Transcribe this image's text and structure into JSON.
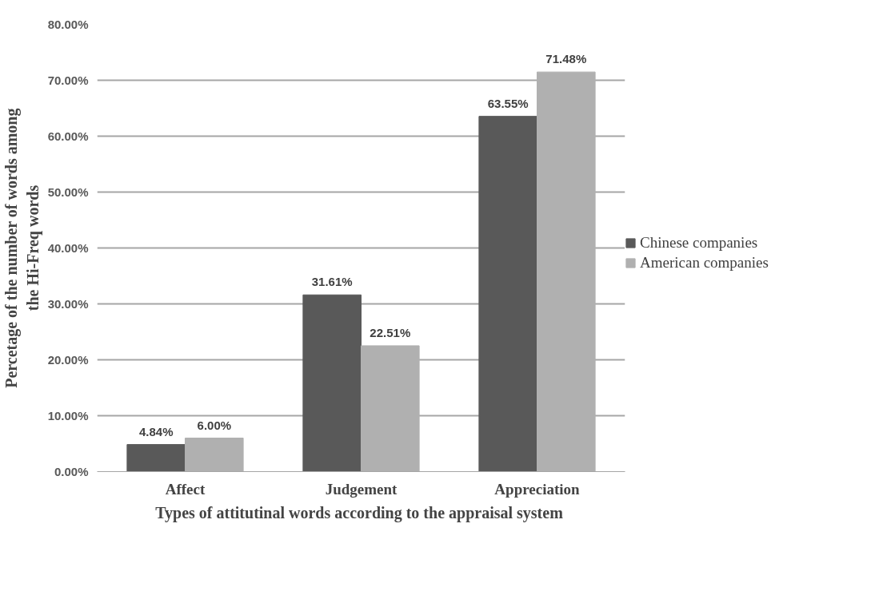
{
  "chart_data": {
    "type": "bar",
    "xlabel": "Types of  attitutinal words according to the appraisal system",
    "ylabel": "Percetage of the number of words among\nthe Hi-Freq words",
    "categories": [
      "Affect",
      "Judgement",
      "Appreciation"
    ],
    "series": [
      {
        "name": "Chinese companies",
        "color": "#595959",
        "values": [
          4.84,
          31.61,
          63.55
        ],
        "value_labels": [
          "4.84%",
          "31.61%",
          "63.55%"
        ]
      },
      {
        "name": "American companies",
        "color": "#b0b0b0",
        "values": [
          6.0,
          22.51,
          71.48
        ],
        "value_labels": [
          "6.00%",
          "22.51%",
          "71.48%"
        ]
      }
    ],
    "ylim": [
      0,
      80
    ],
    "yticks": [
      {
        "value": 0,
        "label": "0.00%"
      },
      {
        "value": 10,
        "label": "10.00%"
      },
      {
        "value": 20,
        "label": "20.00%"
      },
      {
        "value": 30,
        "label": "30.00%"
      },
      {
        "value": 40,
        "label": "40.00%"
      },
      {
        "value": 50,
        "label": "50.00%"
      },
      {
        "value": 60,
        "label": "60.00%"
      },
      {
        "value": 70,
        "label": "70.00%"
      },
      {
        "value": 80,
        "label": "80.00%"
      }
    ],
    "grid": "y",
    "legend": "right"
  }
}
